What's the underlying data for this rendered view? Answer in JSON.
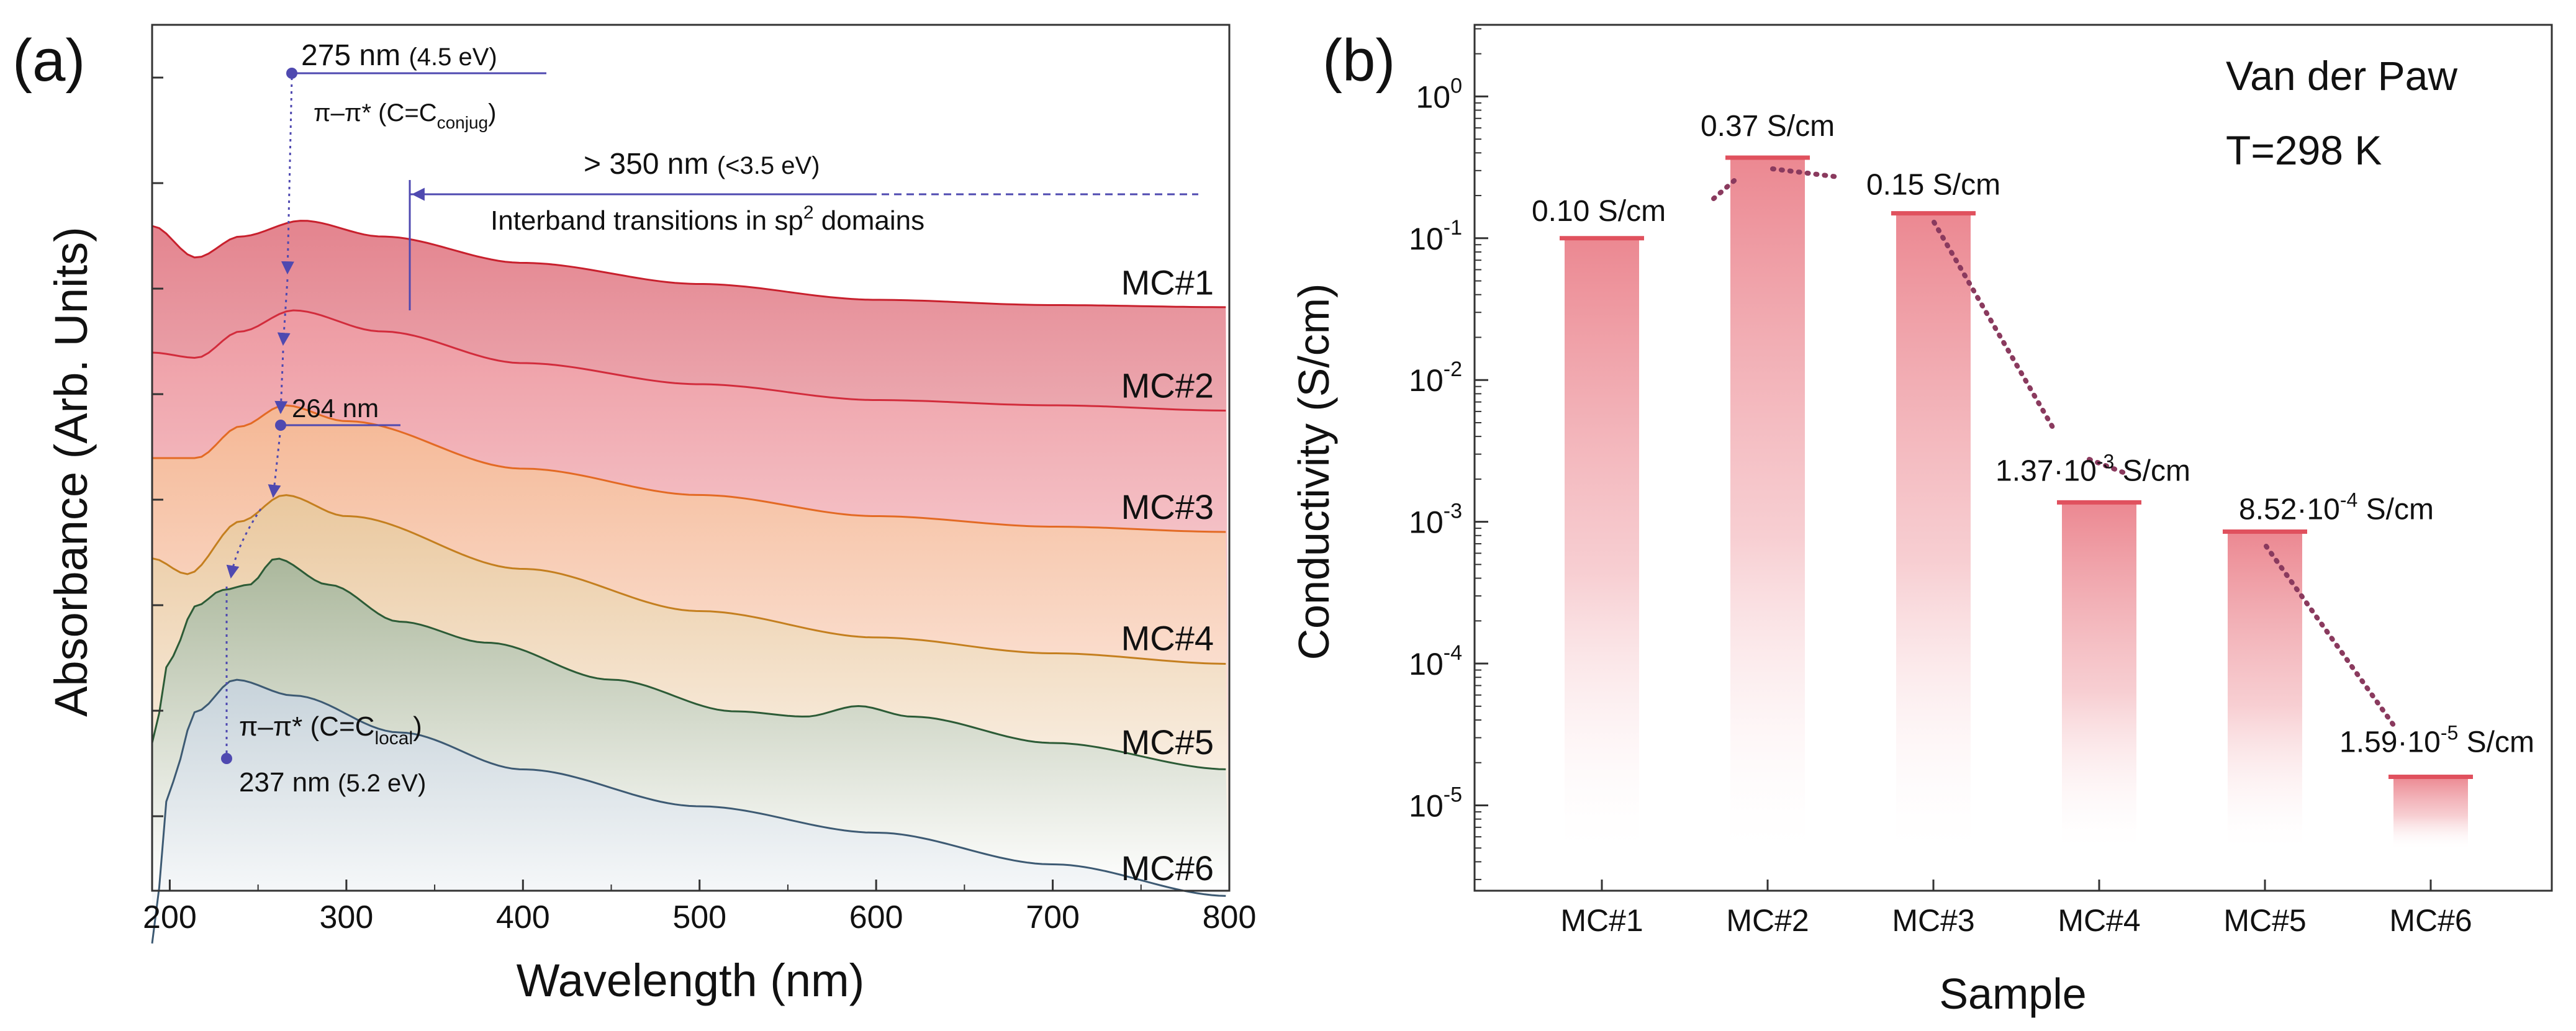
{
  "colors": {
    "arrow": "#4f49b0",
    "dots": "#8a3a5e",
    "bar_top": "#e0515e",
    "axis": "#333333"
  },
  "chart_data": [
    {
      "panel_label": "(a)",
      "type": "line",
      "xlabel": "Wavelength (nm)",
      "ylabel": "Absorbance (Arb. Units)",
      "xlim": [
        190,
        800
      ],
      "xticks": [
        "200",
        "300",
        "400",
        "500",
        "600",
        "700",
        "800"
      ],
      "y_ticks_unlabeled": 8,
      "series": [
        {
          "name": "MC#1",
          "color": "#c8202d",
          "fill": "#e27d88",
          "offset": 5.0,
          "points": [
            [
              190,
              0.3
            ],
            [
              215,
              0.0
            ],
            [
              240,
              0.2
            ],
            [
              275,
              0.35
            ],
            [
              320,
              0.2
            ],
            [
              400,
              -0.05
            ],
            [
              500,
              -0.25
            ],
            [
              600,
              -0.4
            ],
            [
              700,
              -0.45
            ],
            [
              800,
              -0.47
            ]
          ]
        },
        {
          "name": "MC#2",
          "color": "#d22c3c",
          "fill": "#ee9aa2",
          "offset": 4.0,
          "points": [
            [
              190,
              0.1
            ],
            [
              215,
              0.05
            ],
            [
              240,
              0.3
            ],
            [
              270,
              0.5
            ],
            [
              320,
              0.3
            ],
            [
              400,
              0.0
            ],
            [
              500,
              -0.2
            ],
            [
              600,
              -0.35
            ],
            [
              700,
              -0.4
            ],
            [
              800,
              -0.45
            ]
          ]
        },
        {
          "name": "MC#3",
          "color": "#e36a24",
          "fill": "#f5b893",
          "offset": 3.0,
          "points": [
            [
              190,
              0.1
            ],
            [
              215,
              0.1
            ],
            [
              240,
              0.4
            ],
            [
              265,
              0.6
            ],
            [
              300,
              0.45
            ],
            [
              400,
              0.0
            ],
            [
              500,
              -0.25
            ],
            [
              600,
              -0.45
            ],
            [
              700,
              -0.55
            ],
            [
              800,
              -0.6
            ]
          ]
        },
        {
          "name": "MC#4",
          "color": "#c47f1f",
          "fill": "#e9c89d",
          "offset": 2.0,
          "points": [
            [
              190,
              0.15
            ],
            [
              210,
              0.0
            ],
            [
              240,
              0.5
            ],
            [
              265,
              0.75
            ],
            [
              300,
              0.55
            ],
            [
              400,
              0.05
            ],
            [
              500,
              -0.35
            ],
            [
              600,
              -0.6
            ],
            [
              700,
              -0.75
            ],
            [
              800,
              -0.85
            ]
          ]
        },
        {
          "name": "MC#5",
          "color": "#2c5b36",
          "fill": "#a7b69b",
          "offset": 1.0,
          "points": [
            [
              190,
              -0.6
            ],
            [
              200,
              0.2
            ],
            [
              215,
              0.7
            ],
            [
              230,
              0.85
            ],
            [
              245,
              0.9
            ],
            [
              260,
              1.15
            ],
            [
              290,
              0.9
            ],
            [
              330,
              0.55
            ],
            [
              380,
              0.35
            ],
            [
              450,
              0.0
            ],
            [
              520,
              -0.3
            ],
            [
              560,
              -0.35
            ],
            [
              590,
              -0.25
            ],
            [
              620,
              -0.35
            ],
            [
              700,
              -0.6
            ],
            [
              800,
              -0.85
            ]
          ]
        },
        {
          "name": "MC#6",
          "color": "#3d5a73",
          "fill": "#c7d3dc",
          "offset": 0.0,
          "points": [
            [
              190,
              -1.5
            ],
            [
              200,
              0.0
            ],
            [
              215,
              0.7
            ],
            [
              237,
              1.0
            ],
            [
              270,
              0.85
            ],
            [
              330,
              0.5
            ],
            [
              400,
              0.15
            ],
            [
              500,
              -0.2
            ],
            [
              600,
              -0.45
            ],
            [
              700,
              -0.75
            ],
            [
              800,
              -1.05
            ]
          ]
        }
      ],
      "annotations": {
        "peak1_wavelength": "275 nm",
        "peak1_energy": "(4.5 eV)",
        "peak1_transition": "π–π* (C=C",
        "peak1_transition_sub": "conjug",
        "peak1_close": ")",
        "threshold_wavelength": "> 350 nm",
        "threshold_energy": "(<3.5 eV)",
        "interband_text": "Interband transitions in sp",
        "interband_sup": "2",
        "interband_end": "domains",
        "peak_mid": "264 nm",
        "peak2_transition": "π–π* (C=C",
        "peak2_transition_sub": "local",
        "peak2_close": ")",
        "peak2_wavelength": "237 nm",
        "peak2_energy": "(5.2 eV)"
      }
    },
    {
      "panel_label": "(b)",
      "type": "bar",
      "ylog": true,
      "xlabel": "Sample",
      "ylabel": "Conductivity (S/cm)",
      "ylim": [
        2.5e-06,
        3.2
      ],
      "yticks": [
        {
          "base": "10",
          "exp": "0",
          "value": 1
        },
        {
          "base": "10",
          "exp": "-1",
          "value": 0.1
        },
        {
          "base": "10",
          "exp": "-2",
          "value": 0.01
        },
        {
          "base": "10",
          "exp": "-3",
          "value": 0.001
        },
        {
          "base": "10",
          "exp": "-4",
          "value": 0.0001
        },
        {
          "base": "10",
          "exp": "-5",
          "value": 1e-05
        }
      ],
      "categories": [
        "MC#1",
        "MC#2",
        "MC#3",
        "MC#4",
        "MC#5",
        "MC#6"
      ],
      "values": [
        0.1,
        0.37,
        0.15,
        0.00137,
        0.000852,
        1.59e-05
      ],
      "bar_floor": 5e-06,
      "value_labels": [
        {
          "pre": "0.10 S/cm",
          "sup": "",
          "post": ""
        },
        {
          "pre": "0.37 S/cm",
          "sup": "",
          "post": ""
        },
        {
          "pre": "0.15 S/cm",
          "sup": "",
          "post": ""
        },
        {
          "pre": "1.37·10",
          "sup": "-3",
          "post": " S/cm"
        },
        {
          "pre": "8.52·10",
          "sup": "-4",
          "post": " S/cm"
        },
        {
          "pre": "1.59·10",
          "sup": "-5",
          "post": " S/cm"
        }
      ],
      "legend_title": "Van der Paw",
      "legend_temperature": "T=298 K"
    }
  ]
}
